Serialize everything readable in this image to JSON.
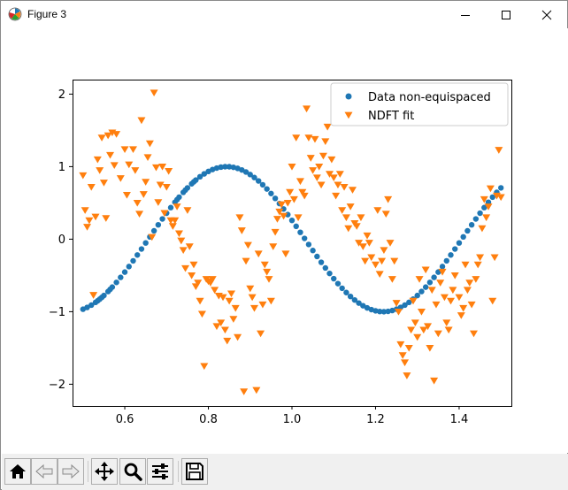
{
  "window": {
    "title": "Figure 3"
  },
  "toolbar": {
    "buttons": [
      {
        "name": "home-button",
        "icon": "home-icon"
      },
      {
        "name": "back-button",
        "icon": "back-arrow-icon"
      },
      {
        "name": "forward-button",
        "icon": "forward-arrow-icon"
      },
      {
        "name": "pan-button",
        "icon": "move-icon"
      },
      {
        "name": "zoom-button",
        "icon": "magnifier-icon"
      },
      {
        "name": "configure-subplots-button",
        "icon": "sliders-icon"
      },
      {
        "name": "save-button",
        "icon": "floppy-disk-icon"
      }
    ]
  },
  "chart_data": {
    "type": "scatter",
    "title": "",
    "xlabel": "",
    "ylabel": "",
    "xlim": [
      0.475,
      1.525
    ],
    "ylim": [
      -2.3,
      2.2
    ],
    "xticks": [
      0.6,
      0.8,
      1.0,
      1.2,
      1.4
    ],
    "xtick_labels": [
      "0.6",
      "0.8",
      "1.0",
      "1.2",
      "1.4"
    ],
    "yticks": [
      -2,
      -1,
      0,
      1,
      2
    ],
    "ytick_labels": [
      "−2",
      "−1",
      "0",
      "1",
      "2"
    ],
    "grid": false,
    "legend_position": "upper right",
    "colors": {
      "series1": "#1f77b4",
      "series2": "#ff7f0e"
    },
    "series": [
      {
        "name": "Data non-equispaced",
        "marker": "circle",
        "color": "#1f77b4",
        "model": "sin(8*pi*x/3 + 0.25*pi)",
        "x": [
          0.5,
          0.51,
          0.52,
          0.53,
          0.535,
          0.54,
          0.545,
          0.55,
          0.56,
          0.565,
          0.57,
          0.58,
          0.59,
          0.6,
          0.61,
          0.62,
          0.63,
          0.64,
          0.65,
          0.66,
          0.67,
          0.68,
          0.69,
          0.7,
          0.71,
          0.72,
          0.725,
          0.73,
          0.74,
          0.745,
          0.75,
          0.76,
          0.765,
          0.77,
          0.78,
          0.79,
          0.8,
          0.81,
          0.82,
          0.83,
          0.84,
          0.85,
          0.86,
          0.87,
          0.88,
          0.89,
          0.9,
          0.91,
          0.92,
          0.93,
          0.94,
          0.95,
          0.96,
          0.97,
          0.98,
          0.99,
          1.0,
          1.01,
          1.02,
          1.03,
          1.04,
          1.05,
          1.06,
          1.07,
          1.08,
          1.09,
          1.1,
          1.11,
          1.12,
          1.13,
          1.14,
          1.15,
          1.16,
          1.17,
          1.18,
          1.19,
          1.2,
          1.21,
          1.22,
          1.23,
          1.24,
          1.25,
          1.26,
          1.27,
          1.28,
          1.29,
          1.3,
          1.31,
          1.32,
          1.33,
          1.34,
          1.35,
          1.36,
          1.37,
          1.38,
          1.39,
          1.4,
          1.41,
          1.42,
          1.43,
          1.44,
          1.45,
          1.46,
          1.47,
          1.48,
          1.49,
          1.5
        ]
      },
      {
        "name": "NDFT fit",
        "marker": "triangle_down",
        "color": "#ff7f0e",
        "points": [
          [
            0.5,
            0.88
          ],
          [
            0.505,
            0.4
          ],
          [
            0.51,
            0.17
          ],
          [
            0.515,
            0.26
          ],
          [
            0.52,
            0.72
          ],
          [
            0.525,
            -0.77
          ],
          [
            0.53,
            0.31
          ],
          [
            0.535,
            1.1
          ],
          [
            0.54,
            0.95
          ],
          [
            0.545,
            1.4
          ],
          [
            0.55,
            0.78
          ],
          [
            0.555,
            0.29
          ],
          [
            0.56,
            1.43
          ],
          [
            0.565,
            1.16
          ],
          [
            0.57,
            1.47
          ],
          [
            0.575,
            1.02
          ],
          [
            0.58,
            1.45
          ],
          [
            0.59,
            0.84
          ],
          [
            0.6,
            1.24
          ],
          [
            0.605,
            0.61
          ],
          [
            0.61,
            1.03
          ],
          [
            0.62,
            1.24
          ],
          [
            0.625,
            0.95
          ],
          [
            0.63,
            0.5
          ],
          [
            0.635,
            0.35
          ],
          [
            0.64,
            1.64
          ],
          [
            0.645,
            0.62
          ],
          [
            0.65,
            0.79
          ],
          [
            0.655,
            1.13
          ],
          [
            0.66,
            1.32
          ],
          [
            0.665,
            0.03
          ],
          [
            0.67,
            2.02
          ],
          [
            0.675,
            0.99
          ],
          [
            0.68,
            0.51
          ],
          [
            0.685,
            0.75
          ],
          [
            0.69,
            1.0
          ],
          [
            0.695,
            0.36
          ],
          [
            0.7,
            0.72
          ],
          [
            0.705,
            0.94
          ],
          [
            0.71,
            0.26
          ],
          [
            0.715,
            0.18
          ],
          [
            0.72,
            0.26
          ],
          [
            0.725,
            0.45
          ],
          [
            0.73,
            0.08
          ],
          [
            0.735,
            -0.02
          ],
          [
            0.74,
            -0.15
          ],
          [
            0.745,
            -0.4
          ],
          [
            0.75,
            0.4
          ],
          [
            0.755,
            -0.1
          ],
          [
            0.76,
            -0.5
          ],
          [
            0.765,
            -0.35
          ],
          [
            0.77,
            -0.65
          ],
          [
            0.775,
            -0.6
          ],
          [
            0.78,
            -0.85
          ],
          [
            0.785,
            -1.03
          ],
          [
            0.79,
            -1.75
          ],
          [
            0.795,
            -0.55
          ],
          [
            0.8,
            -0.58
          ],
          [
            0.805,
            -0.6
          ],
          [
            0.81,
            -0.55
          ],
          [
            0.815,
            -0.7
          ],
          [
            0.82,
            -1.2
          ],
          [
            0.825,
            -0.78
          ],
          [
            0.83,
            -1.15
          ],
          [
            0.835,
            -0.8
          ],
          [
            0.84,
            -1.25
          ],
          [
            0.845,
            -1.4
          ],
          [
            0.85,
            -0.85
          ],
          [
            0.855,
            -0.75
          ],
          [
            0.86,
            -1.1
          ],
          [
            0.865,
            -0.95
          ],
          [
            0.87,
            -1.35
          ],
          [
            0.875,
            0.3
          ],
          [
            0.88,
            0.12
          ],
          [
            0.885,
            -2.1
          ],
          [
            0.89,
            -0.3
          ],
          [
            0.895,
            -0.08
          ],
          [
            0.9,
            -0.68
          ],
          [
            0.905,
            -0.8
          ],
          [
            0.91,
            -0.95
          ],
          [
            0.915,
            -2.08
          ],
          [
            0.92,
            -0.2
          ],
          [
            0.925,
            -1.3
          ],
          [
            0.93,
            -0.9
          ],
          [
            0.935,
            -0.35
          ],
          [
            0.94,
            -0.45
          ],
          [
            0.945,
            -0.55
          ],
          [
            0.95,
            -0.85
          ],
          [
            0.955,
            -0.1
          ],
          [
            0.96,
            0.1
          ],
          [
            0.965,
            0.28
          ],
          [
            0.97,
            0.38
          ],
          [
            0.975,
            0.48
          ],
          [
            0.98,
            0.32
          ],
          [
            0.985,
            -0.2
          ],
          [
            0.99,
            0.5
          ],
          [
            0.995,
            0.65
          ],
          [
            1.0,
            1.0
          ],
          [
            1.005,
            0.55
          ],
          [
            1.01,
            1.4
          ],
          [
            1.015,
            0.3
          ],
          [
            1.02,
            0.8
          ],
          [
            1.025,
            0.65
          ],
          [
            1.03,
            0.6
          ],
          [
            1.035,
            1.8
          ],
          [
            1.04,
            1.4
          ],
          [
            1.045,
            1.12
          ],
          [
            1.05,
            0.95
          ],
          [
            1.055,
            1.38
          ],
          [
            1.06,
            0.85
          ],
          [
            1.065,
            1.0
          ],
          [
            1.07,
            0.75
          ],
          [
            1.075,
            1.15
          ],
          [
            1.08,
            1.35
          ],
          [
            1.085,
            1.55
          ],
          [
            1.09,
            0.9
          ],
          [
            1.095,
            1.1
          ],
          [
            1.1,
            0.85
          ],
          [
            1.105,
            0.6
          ],
          [
            1.11,
            0.75
          ],
          [
            1.115,
            0.9
          ],
          [
            1.12,
            0.4
          ],
          [
            1.125,
            0.72
          ],
          [
            1.13,
            0.3
          ],
          [
            1.135,
            0.15
          ],
          [
            1.14,
            0.45
          ],
          [
            1.145,
            0.68
          ],
          [
            1.15,
            0.22
          ],
          [
            1.155,
            0.18
          ],
          [
            1.16,
            -0.05
          ],
          [
            1.165,
            0.3
          ],
          [
            1.17,
            -0.1
          ],
          [
            1.175,
            -0.3
          ],
          [
            1.18,
            0.05
          ],
          [
            1.185,
            -0.05
          ],
          [
            1.19,
            -0.25
          ],
          [
            1.2,
            -0.35
          ],
          [
            1.205,
            0.4
          ],
          [
            1.21,
            -0.48
          ],
          [
            1.215,
            -0.3
          ],
          [
            1.22,
            -0.15
          ],
          [
            1.225,
            0.35
          ],
          [
            1.23,
            0.55
          ],
          [
            1.235,
            -0.05
          ],
          [
            1.24,
            -0.55
          ],
          [
            1.245,
            -0.3
          ],
          [
            1.25,
            -0.88
          ],
          [
            1.255,
            -1.0
          ],
          [
            1.26,
            -1.45
          ],
          [
            1.265,
            -1.6
          ],
          [
            1.27,
            -1.7
          ],
          [
            1.275,
            -1.88
          ],
          [
            1.28,
            -1.5
          ],
          [
            1.285,
            -1.25
          ],
          [
            1.29,
            -0.85
          ],
          [
            1.295,
            -1.15
          ],
          [
            1.3,
            -1.35
          ],
          [
            1.305,
            -0.55
          ],
          [
            1.31,
            -1.0
          ],
          [
            1.315,
            -1.25
          ],
          [
            1.32,
            -0.42
          ],
          [
            1.325,
            -1.2
          ],
          [
            1.33,
            -1.5
          ],
          [
            1.335,
            -0.7
          ],
          [
            1.34,
            -1.95
          ],
          [
            1.345,
            -0.9
          ],
          [
            1.35,
            -1.3
          ],
          [
            1.355,
            -0.6
          ],
          [
            1.36,
            -0.45
          ],
          [
            1.365,
            -0.8
          ],
          [
            1.37,
            -1.15
          ],
          [
            1.375,
            -1.25
          ],
          [
            1.38,
            -0.85
          ],
          [
            1.385,
            -0.7
          ],
          [
            1.39,
            -0.5
          ],
          [
            1.4,
            -0.8
          ],
          [
            1.405,
            -1.05
          ],
          [
            1.41,
            -0.95
          ],
          [
            1.415,
            -0.35
          ],
          [
            1.42,
            -0.7
          ],
          [
            1.425,
            -0.6
          ],
          [
            1.43,
            -0.9
          ],
          [
            1.435,
            -1.3
          ],
          [
            1.44,
            -0.55
          ],
          [
            1.445,
            -0.35
          ],
          [
            1.45,
            -0.25
          ],
          [
            1.455,
            0.15
          ],
          [
            1.46,
            0.55
          ],
          [
            1.465,
            0.3
          ],
          [
            1.47,
            0.45
          ],
          [
            1.475,
            0.7
          ],
          [
            1.48,
            -0.85
          ],
          [
            1.485,
            -0.25
          ],
          [
            1.49,
            0.6
          ],
          [
            1.495,
            1.23
          ],
          [
            1.5,
            0.58
          ]
        ]
      }
    ]
  }
}
